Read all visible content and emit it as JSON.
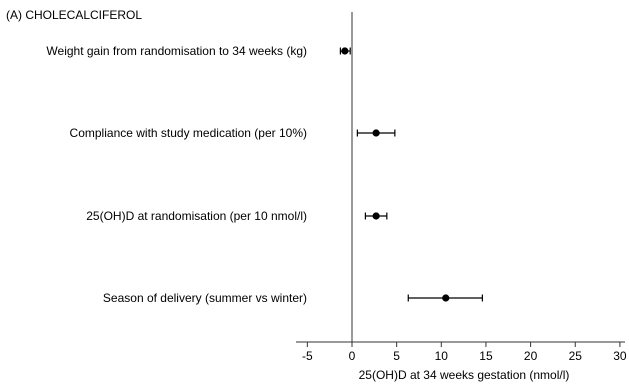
{
  "chart_data": {
    "type": "forest",
    "title": "(A) CHOLECALCIFEROL",
    "xlabel": "25(OH)D at 34 weeks gestation (nmol/l)",
    "xlim": [
      -6,
      31
    ],
    "xticks": [
      -5,
      0,
      5,
      10,
      15,
      20,
      25,
      30
    ],
    "reference_line": 0,
    "grid": false,
    "rows": [
      {
        "label": "Weight gain from randomisation to 34 weeks (kg)",
        "estimate": -0.8,
        "lower": -1.3,
        "upper": -0.2
      },
      {
        "label": "Compliance with study medication (per 10%)",
        "estimate": 2.7,
        "lower": 0.6,
        "upper": 4.8
      },
      {
        "label": "25(OH)D at randomisation (per 10 nmol/l)",
        "estimate": 2.7,
        "lower": 1.5,
        "upper": 3.9
      },
      {
        "label": "Season of delivery (summer vs winter)",
        "estimate": 10.5,
        "lower": 6.3,
        "upper": 14.6
      }
    ]
  }
}
